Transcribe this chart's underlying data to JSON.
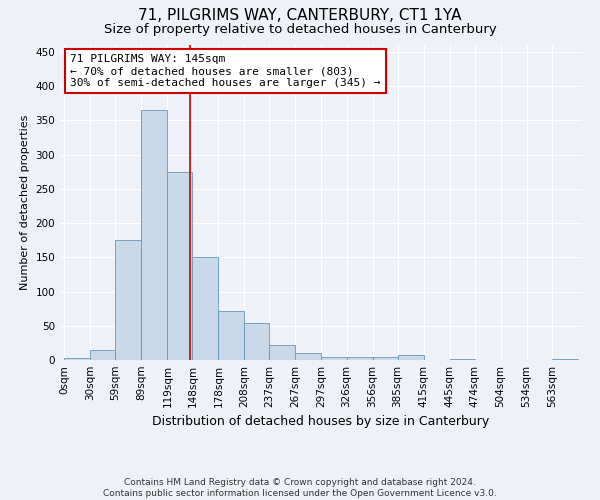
{
  "title": "71, PILGRIMS WAY, CANTERBURY, CT1 1YA",
  "subtitle": "Size of property relative to detached houses in Canterbury",
  "xlabel": "Distribution of detached houses by size in Canterbury",
  "ylabel": "Number of detached properties",
  "footer_line1": "Contains HM Land Registry data © Crown copyright and database right 2024.",
  "footer_line2": "Contains public sector information licensed under the Open Government Licence v3.0.",
  "annotation_line1": "71 PILGRIMS WAY: 145sqm",
  "annotation_line2": "← 70% of detached houses are smaller (803)",
  "annotation_line3": "30% of semi-detached houses are larger (345) →",
  "property_size": 145,
  "bin_edges": [
    0,
    30,
    59,
    89,
    119,
    148,
    178,
    208,
    237,
    267,
    297,
    326,
    356,
    385,
    415,
    445,
    474,
    504,
    534,
    563,
    593
  ],
  "bar_heights": [
    3,
    15,
    175,
    365,
    275,
    150,
    72,
    54,
    22,
    10,
    5,
    5,
    5,
    8,
    0,
    2,
    0,
    0,
    0,
    2
  ],
  "bar_color": "#c9d9ea",
  "bar_edge_color": "#6699bb",
  "vline_color": "#cc0000",
  "vline_x": 145,
  "ylim": [
    0,
    460
  ],
  "yticks": [
    0,
    50,
    100,
    150,
    200,
    250,
    300,
    350,
    400,
    450
  ],
  "background_color": "#eef2f8",
  "grid_color": "#ffffff",
  "title_fontsize": 11,
  "subtitle_fontsize": 9.5,
  "xlabel_fontsize": 9,
  "ylabel_fontsize": 8,
  "tick_fontsize": 7.5,
  "annotation_fontsize": 8,
  "footer_fontsize": 6.5
}
